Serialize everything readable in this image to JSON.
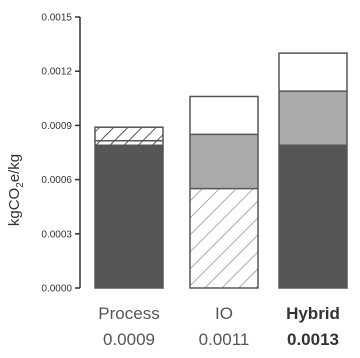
{
  "chart_data": {
    "type": "bar",
    "stacked": true,
    "ylabel_main": "kgCO",
    "ylabel_sub": "2",
    "ylabel_tail": "e/kg",
    "ylim": [
      0,
      0.0015
    ],
    "yticks": [
      "0.0000",
      "0.0003",
      "0.0006",
      "0.0009",
      "0.0012",
      "0.0015"
    ],
    "categories": [
      "Process",
      "IO",
      "Hybrid"
    ],
    "totals": [
      "0.0009",
      "0.0011",
      "0.0013"
    ],
    "bold_category": "Hybrid",
    "bars": [
      {
        "category": "Process",
        "segments": [
          {
            "value": 0.00079,
            "style": "dark"
          },
          {
            "value": 2.5e-05,
            "style": "hatch"
          },
          {
            "value": 7.5e-05,
            "style": "hatch"
          }
        ]
      },
      {
        "category": "IO",
        "segments": [
          {
            "value": 0.00055,
            "style": "hatch"
          },
          {
            "value": 0.0003,
            "style": "gray"
          },
          {
            "value": 0.00021,
            "style": "white"
          }
        ]
      },
      {
        "category": "Hybrid",
        "segments": [
          {
            "value": 0.00079,
            "style": "dark"
          },
          {
            "value": 0.0003,
            "style": "gray"
          },
          {
            "value": 0.00021,
            "style": "white"
          }
        ]
      }
    ],
    "colors": {
      "dark": "#555555",
      "gray": "#aaaaaa",
      "white": "#ffffff",
      "outline": "#555555",
      "hatch_stroke": "#aaaaaa"
    }
  }
}
